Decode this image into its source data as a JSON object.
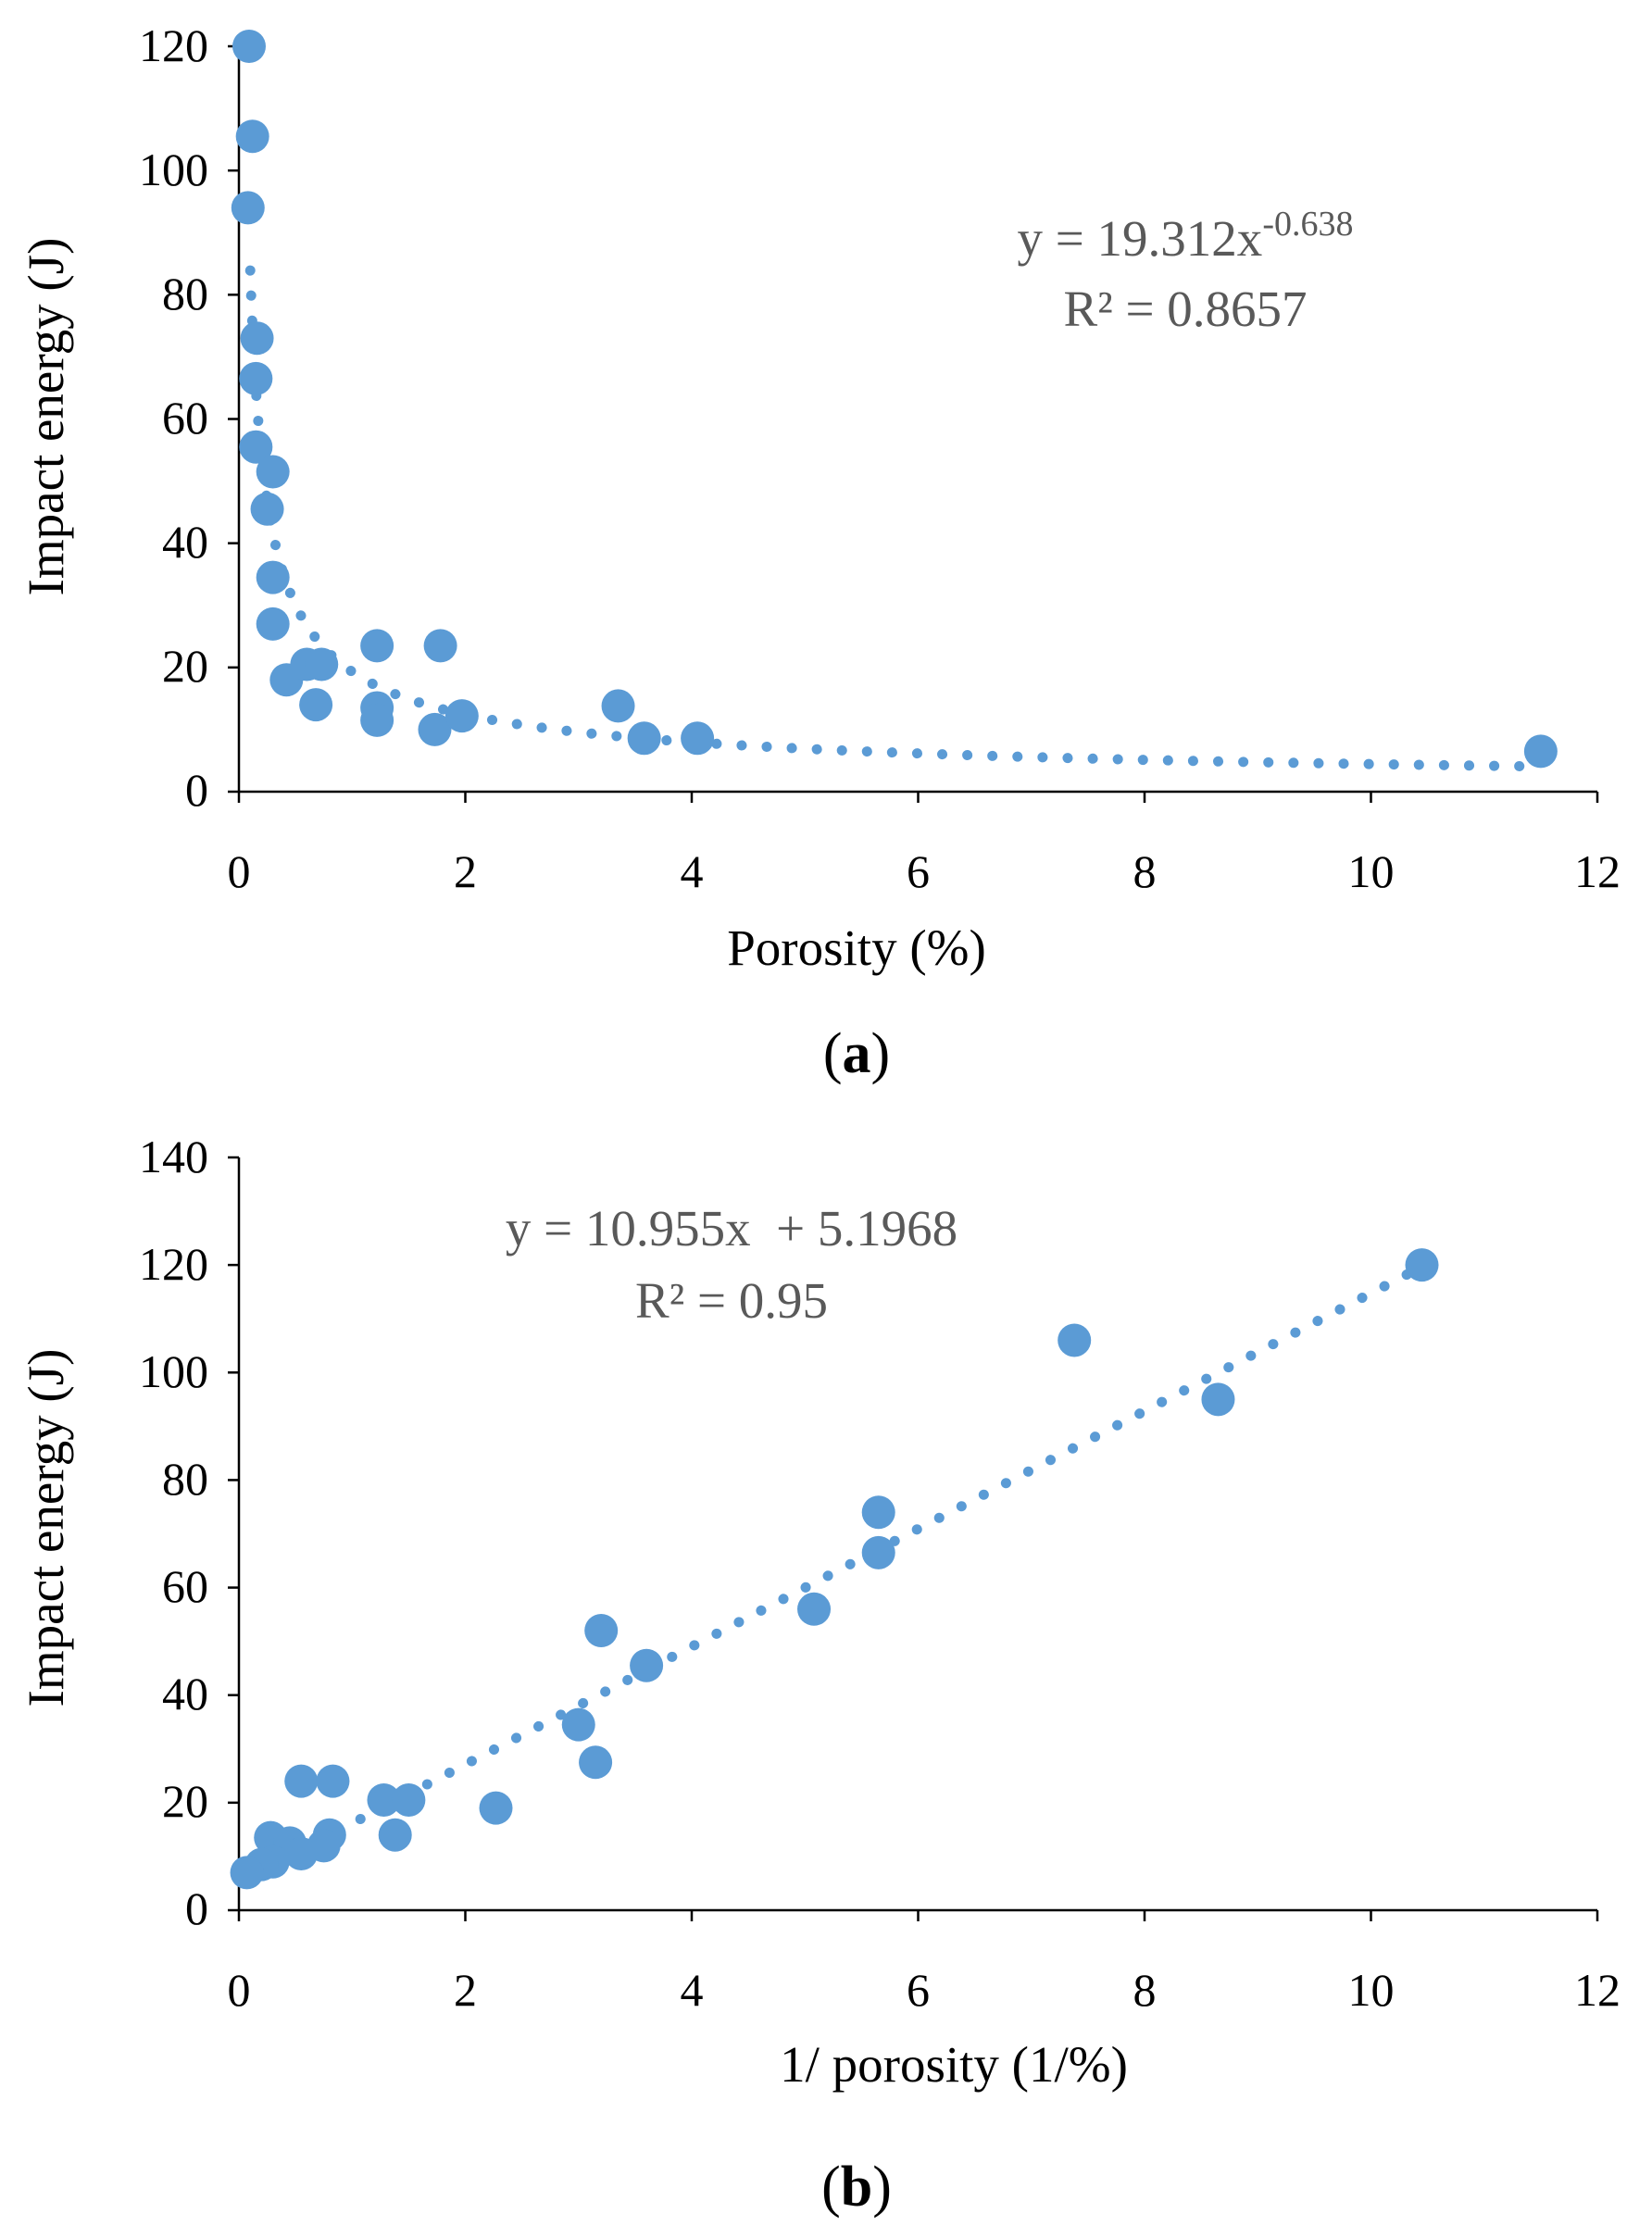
{
  "colors": {
    "points": "#5b9bd5",
    "trend": "#5b9bd5",
    "equation_text": "#595959",
    "axis": "#000000"
  },
  "chart_data": [
    {
      "id": "a",
      "type": "scatter",
      "panel_label": "a",
      "xlabel": "Porosity (%)",
      "ylabel": "Impact energy (J)",
      "xlim": [
        0,
        12
      ],
      "ylim": [
        0,
        120
      ],
      "xticks": [
        0,
        2,
        4,
        6,
        8,
        10,
        12
      ],
      "yticks": [
        0,
        20,
        40,
        60,
        80,
        100,
        120
      ],
      "equation_base": "y = 19.312x",
      "equation_exponent": "-0.638",
      "r2": "R² = 0.8657",
      "trendline": {
        "type": "power",
        "a": 19.312,
        "b": -0.638,
        "x_from": 0.1,
        "x_to": 11.5
      },
      "points": [
        {
          "x": 0.09,
          "y": 120
        },
        {
          "x": 0.12,
          "y": 105.5
        },
        {
          "x": 0.08,
          "y": 94
        },
        {
          "x": 0.16,
          "y": 73
        },
        {
          "x": 0.15,
          "y": 66.5
        },
        {
          "x": 0.15,
          "y": 55.5
        },
        {
          "x": 0.3,
          "y": 51.5
        },
        {
          "x": 0.25,
          "y": 45.5
        },
        {
          "x": 0.3,
          "y": 34.5
        },
        {
          "x": 0.3,
          "y": 27
        },
        {
          "x": 0.42,
          "y": 18
        },
        {
          "x": 0.6,
          "y": 20.5
        },
        {
          "x": 0.73,
          "y": 20.5
        },
        {
          "x": 0.68,
          "y": 14
        },
        {
          "x": 1.22,
          "y": 23.5
        },
        {
          "x": 1.22,
          "y": 13.5
        },
        {
          "x": 1.22,
          "y": 11.5
        },
        {
          "x": 1.78,
          "y": 23.5
        },
        {
          "x": 1.73,
          "y": 10
        },
        {
          "x": 1.97,
          "y": 12.2
        },
        {
          "x": 3.35,
          "y": 13.8
        },
        {
          "x": 3.58,
          "y": 8.6
        },
        {
          "x": 4.05,
          "y": 8.6
        },
        {
          "x": 11.5,
          "y": 6.5
        }
      ]
    },
    {
      "id": "b",
      "type": "scatter",
      "panel_label": "b",
      "xlabel": "1/ porosity (1/%)",
      "ylabel": "Impact energy (J)",
      "xlim": [
        0,
        12
      ],
      "ylim": [
        0,
        140
      ],
      "xticks": [
        0,
        2,
        4,
        6,
        8,
        10,
        12
      ],
      "yticks": [
        0,
        20,
        40,
        60,
        80,
        100,
        120,
        140
      ],
      "equation": "y = 10.955x  + 5.1968",
      "r2": "R² = 0.95",
      "trendline": {
        "type": "linear",
        "m": 10.955,
        "c": 5.1968,
        "x_from": 0.09,
        "x_to": 10.5
      },
      "points": [
        {
          "x": 10.45,
          "y": 120
        },
        {
          "x": 7.38,
          "y": 106
        },
        {
          "x": 8.65,
          "y": 95
        },
        {
          "x": 5.65,
          "y": 74
        },
        {
          "x": 5.65,
          "y": 66.5
        },
        {
          "x": 5.08,
          "y": 56
        },
        {
          "x": 3.2,
          "y": 52
        },
        {
          "x": 3.6,
          "y": 45.5
        },
        {
          "x": 3.0,
          "y": 34.5
        },
        {
          "x": 3.15,
          "y": 27.5
        },
        {
          "x": 2.27,
          "y": 19
        },
        {
          "x": 0.55,
          "y": 24
        },
        {
          "x": 0.83,
          "y": 24
        },
        {
          "x": 1.28,
          "y": 20.5
        },
        {
          "x": 1.5,
          "y": 20.5
        },
        {
          "x": 1.38,
          "y": 14
        },
        {
          "x": 0.28,
          "y": 13.5
        },
        {
          "x": 0.45,
          "y": 12.5
        },
        {
          "x": 0.8,
          "y": 14
        },
        {
          "x": 0.75,
          "y": 12
        },
        {
          "x": 0.55,
          "y": 10.5
        },
        {
          "x": 0.3,
          "y": 9
        },
        {
          "x": 0.2,
          "y": 8.5
        },
        {
          "x": 0.07,
          "y": 7
        }
      ]
    }
  ]
}
